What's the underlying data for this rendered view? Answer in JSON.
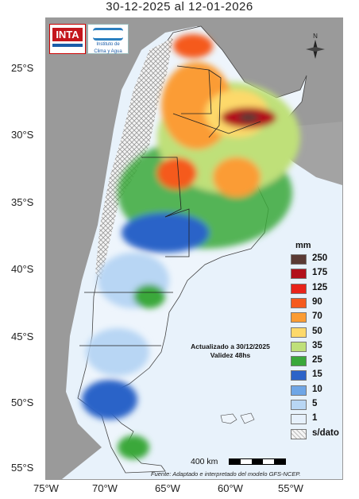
{
  "title": "30-12-2025 al 12-01-2026",
  "logos": {
    "inta": "INTA",
    "clima_line1": "Instituto de",
    "clima_line2": "Clima y Agua"
  },
  "lat_labels": [
    "25°S",
    "30°S",
    "35°S",
    "40°S",
    "45°S",
    "50°S",
    "55°S"
  ],
  "lon_labels": [
    "75°W",
    "70°W",
    "65°W",
    "60°W",
    "55°W"
  ],
  "legend": {
    "unit": "mm",
    "classes": [
      {
        "label": "250",
        "color": "#5a3a34"
      },
      {
        "label": "175",
        "color": "#b2101a"
      },
      {
        "label": "125",
        "color": "#e8231a"
      },
      {
        "label": "90",
        "color": "#f55a1e"
      },
      {
        "label": "70",
        "color": "#fb9c34"
      },
      {
        "label": "50",
        "color": "#fdd96a"
      },
      {
        "label": "35",
        "color": "#bfe079"
      },
      {
        "label": "25",
        "color": "#3aa83a"
      },
      {
        "label": "15",
        "color": "#2c63c8"
      },
      {
        "label": "10",
        "color": "#6fa6e6"
      },
      {
        "label": "5",
        "color": "#b8d6f4"
      },
      {
        "label": "1",
        "color": "#e6f0fb"
      },
      {
        "label": "s/dato",
        "color": "hatch"
      }
    ]
  },
  "note": {
    "line1": "Actualizado a 30/12/2025",
    "line2": "Validez 48hs"
  },
  "scale": {
    "label": "400 km"
  },
  "source": "Fuente: Adaptado e interpretado del modelo GFS-NCEP.",
  "north_label": "N"
}
